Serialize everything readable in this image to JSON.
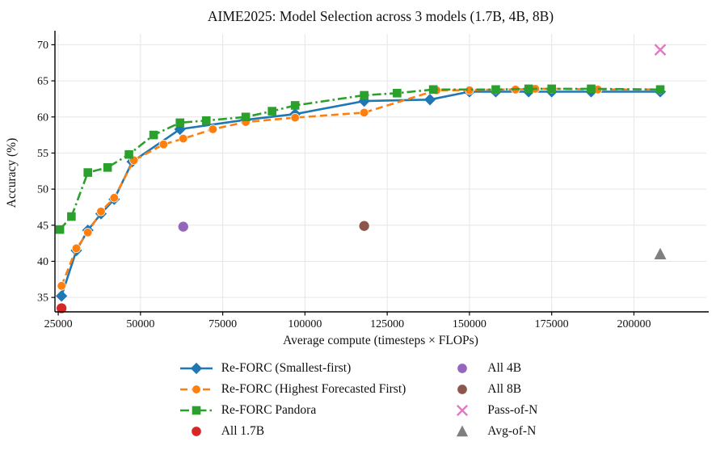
{
  "chart_data": {
    "type": "line",
    "title": "AIME2025: Model Selection across 3 models (1.7B, 4B, 8B)",
    "xlabel": "Average compute (timesteps × FLOPs)",
    "ylabel": "Accuracy (%)",
    "xlim": [
      24000,
      222000
    ],
    "ylim": [
      33,
      71.5
    ],
    "xticks": [
      25000,
      50000,
      75000,
      100000,
      125000,
      150000,
      175000,
      200000
    ],
    "yticks": [
      35,
      40,
      45,
      50,
      55,
      60,
      65,
      70
    ],
    "grid": true,
    "legend_position": "below",
    "series": [
      {
        "name": "Re-FORC (Smallest-first)",
        "color": "#1f77b4",
        "marker": "diamond",
        "dash": "solid",
        "x": [
          26000,
          30500,
          34000,
          38000,
          42000,
          47500,
          62000,
          82000,
          97000,
          118000,
          138000,
          150000,
          158000,
          168000,
          175000,
          187000,
          208000
        ],
        "y": [
          35.2,
          41.5,
          44.3,
          46.6,
          48.6,
          53.8,
          58.3,
          59.6,
          60.4,
          62.2,
          62.4,
          63.5,
          63.5,
          63.5,
          63.5,
          63.5,
          63.5
        ]
      },
      {
        "name": "Re-FORC (Highest Forecasted First)",
        "color": "#ff7f0e",
        "marker": "circle",
        "dash": "dashed",
        "x": [
          26000,
          30500,
          34000,
          38000,
          42000,
          48000,
          57000,
          63000,
          72000,
          82000,
          97000,
          118000,
          140000,
          150000,
          158000,
          164000,
          170000,
          175000,
          189000,
          208000
        ],
        "y": [
          36.6,
          41.8,
          44.0,
          46.9,
          48.8,
          54.0,
          56.2,
          57.0,
          58.3,
          59.3,
          59.9,
          60.6,
          63.7,
          63.7,
          63.8,
          63.8,
          63.9,
          63.9,
          63.8,
          63.8
        ]
      },
      {
        "name": "Re-FORC Pandora",
        "color": "#2ca02c",
        "marker": "square",
        "dash": "dashdot",
        "x": [
          25500,
          29000,
          34000,
          40000,
          46500,
          54000,
          62000,
          70000,
          82000,
          90000,
          97000,
          118000,
          128000,
          139000,
          158000,
          168000,
          175000,
          187000,
          208000
        ],
        "y": [
          44.4,
          46.2,
          52.3,
          53.0,
          54.8,
          57.5,
          59.2,
          59.5,
          60.0,
          60.8,
          61.6,
          63.0,
          63.3,
          63.8,
          63.8,
          63.9,
          63.9,
          63.9,
          63.8
        ]
      }
    ],
    "points": [
      {
        "name": "All 1.7B",
        "color": "#d62728",
        "marker": "circle",
        "x": 26000,
        "y": 33.5
      },
      {
        "name": "All 4B",
        "color": "#9467bd",
        "marker": "circle",
        "x": 63000,
        "y": 44.8
      },
      {
        "name": "All 8B",
        "color": "#8c564b",
        "marker": "circle",
        "x": 118000,
        "y": 44.9
      },
      {
        "name": "Pass-of-N",
        "color": "#e377c2",
        "marker": "x",
        "x": 208000,
        "y": 69.3
      },
      {
        "name": "Avg-of-N",
        "color": "#7f7f7f",
        "marker": "triangle",
        "x": 208000,
        "y": 41.0
      }
    ]
  }
}
